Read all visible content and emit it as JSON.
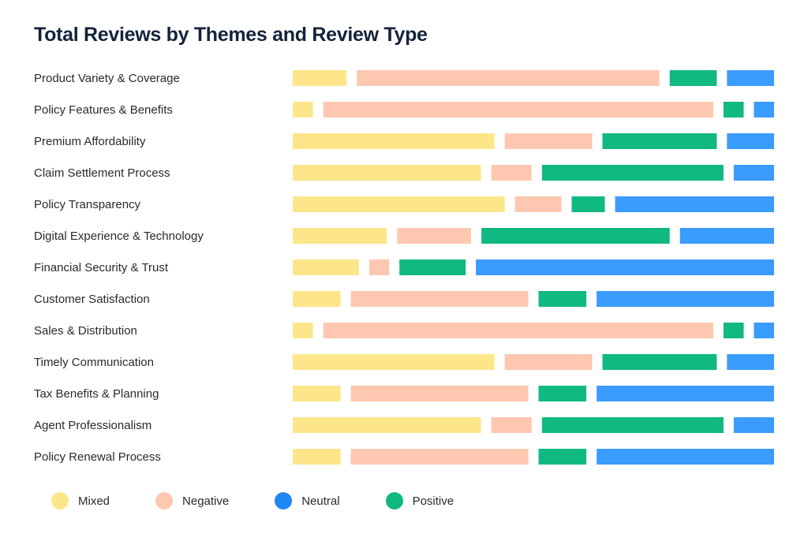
{
  "chart_data": {
    "type": "bar",
    "stacked": true,
    "orientation": "horizontal",
    "title": "Total Reviews by Themes and Review Type",
    "categories": [
      "Product Variety & Coverage",
      "Policy Features & Benefits",
      "Premium Affordability",
      "Claim Settlement Process",
      "Policy Transparency",
      "Digital Experience & Technology",
      "Financial Security & Trust",
      "Customer Satisfaction",
      "Sales & Distribution",
      "Timely Communication",
      "Tax Benefits & Planning",
      "Agent Professionalism",
      "Policy Renewal Process"
    ],
    "series": [
      {
        "name": "Mixed",
        "color": "#fde68a",
        "values": [
          8,
          3,
          30,
          28,
          32,
          14,
          10,
          7,
          3,
          30,
          7,
          28,
          7
        ]
      },
      {
        "name": "Negative",
        "color": "#fec8b0",
        "values": [
          45,
          58,
          13,
          6,
          7,
          11,
          3,
          26,
          58,
          13,
          26,
          6,
          26
        ]
      },
      {
        "name": "Positive",
        "color": "#10b981",
        "values": [
          7,
          3,
          17,
          27,
          5,
          28,
          10,
          7,
          3,
          17,
          7,
          27,
          7
        ]
      },
      {
        "name": "Neutral",
        "color": "#3b9cff",
        "values": [
          7,
          3,
          7,
          6,
          24,
          14,
          45,
          26,
          3,
          7,
          26,
          6,
          26
        ]
      }
    ],
    "legend": {
      "position": "bottom-left",
      "items": [
        {
          "name": "Mixed",
          "color": "#fde68a"
        },
        {
          "name": "Negative",
          "color": "#fec8b0"
        },
        {
          "name": "Neutral",
          "color": "#1e88f5"
        },
        {
          "name": "Positive",
          "color": "#10b981"
        }
      ]
    },
    "grid": false
  }
}
